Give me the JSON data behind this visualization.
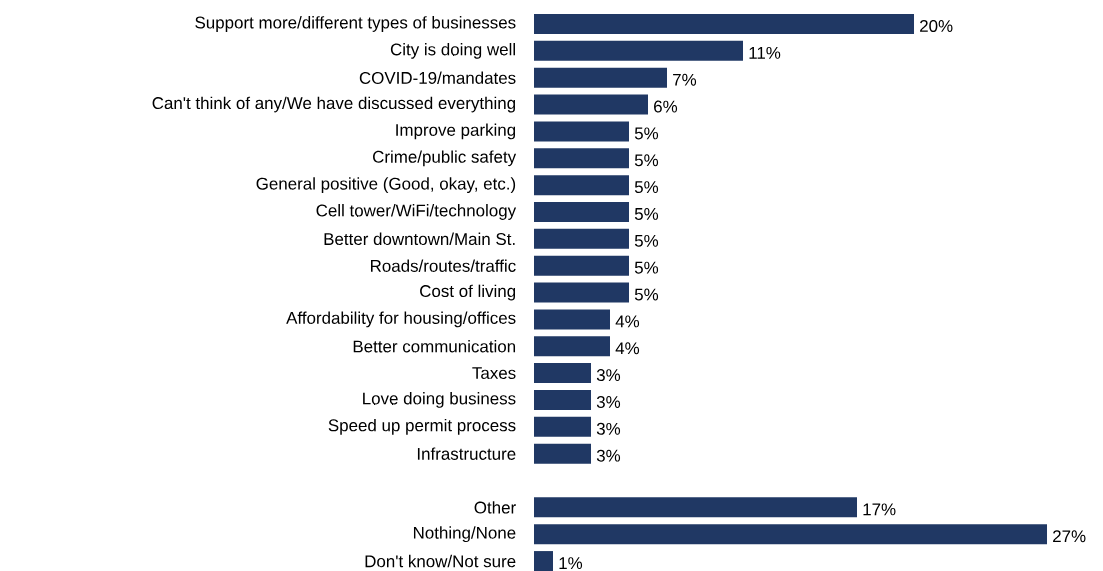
{
  "chart_data": {
    "type": "bar",
    "orientation": "horizontal",
    "color": "#203864",
    "categories": [
      "Support more/different types of businesses",
      "City is doing well",
      "COVID-19/mandates",
      "Can't think of any/We have discussed everything",
      "Improve parking",
      "Crime/public safety",
      "General positive (Good, okay, etc.)",
      "Cell tower/WiFi/technology",
      "Better downtown/Main St.",
      "Roads/routes/traffic",
      "Cost of living",
      "Affordability for housing/offices",
      "Better communication",
      "Taxes",
      "Love doing business",
      "Speed up permit process",
      "Infrastructure",
      null,
      "Other",
      "Nothing/None",
      "Don't know/Not sure"
    ],
    "values": [
      20,
      11,
      7,
      6,
      5,
      5,
      5,
      5,
      5,
      5,
      5,
      4,
      4,
      3,
      3,
      3,
      3,
      null,
      17,
      27,
      1
    ],
    "value_labels": [
      "20%",
      "11%",
      "7%",
      "6%",
      "5%",
      "5%",
      "5%",
      "5%",
      "5%",
      "5%",
      "5%",
      "4%",
      "4%",
      "3%",
      "3%",
      "3%",
      "3%",
      null,
      "17%",
      "27%",
      "1%"
    ]
  }
}
